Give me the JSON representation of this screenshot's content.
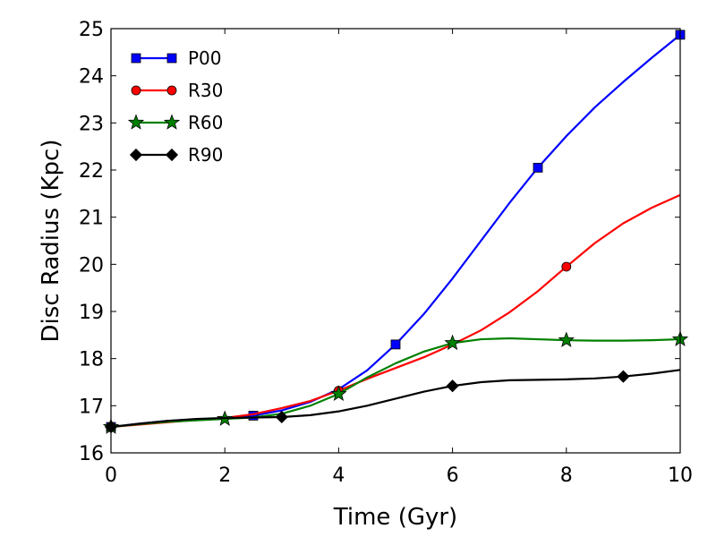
{
  "chart_data": {
    "type": "line",
    "title": "",
    "xlabel": "Time (Gyr)",
    "ylabel": "Disc Radius (Kpc)",
    "xlim": [
      0,
      10
    ],
    "ylim": [
      16,
      25
    ],
    "xticks": [
      0,
      2,
      4,
      6,
      8,
      10
    ],
    "yticks": [
      16,
      17,
      18,
      19,
      20,
      21,
      22,
      23,
      24,
      25
    ],
    "xtick_labels": [
      "0",
      "2",
      "4",
      "6",
      "8",
      "10"
    ],
    "ytick_labels": [
      "16",
      "17",
      "18",
      "19",
      "20",
      "21",
      "22",
      "23",
      "24",
      "25"
    ],
    "grid": false,
    "legend_position": "top-left",
    "series": [
      {
        "name": "P00",
        "color": "#0000ff",
        "marker": "square",
        "x": [
          0,
          0.5,
          1,
          1.5,
          2,
          2.5,
          3,
          3.5,
          4,
          4.5,
          5,
          5.5,
          6,
          6.5,
          7,
          7.5,
          8,
          8.5,
          9,
          9.5,
          10
        ],
        "y": [
          16.55,
          16.62,
          16.68,
          16.71,
          16.73,
          16.79,
          16.9,
          17.08,
          17.35,
          17.75,
          18.3,
          18.95,
          19.7,
          20.5,
          21.3,
          22.05,
          22.72,
          23.33,
          23.87,
          24.38,
          24.87
        ],
        "marker_x": [
          0,
          2.5,
          5,
          7.5,
          10
        ],
        "marker_y": [
          16.55,
          16.79,
          18.3,
          22.05,
          24.87
        ]
      },
      {
        "name": "R30",
        "color": "#ff0000",
        "marker": "circle",
        "x": [
          0,
          0.5,
          1,
          1.5,
          2,
          2.5,
          3,
          3.5,
          4,
          4.5,
          5,
          5.5,
          6,
          6.5,
          7,
          7.5,
          8,
          8.5,
          9,
          9.5,
          10
        ],
        "y": [
          16.55,
          16.6,
          16.65,
          16.7,
          16.74,
          16.82,
          16.95,
          17.1,
          17.32,
          17.57,
          17.8,
          18.03,
          18.3,
          18.6,
          18.98,
          19.43,
          19.95,
          20.45,
          20.87,
          21.2,
          21.47
        ],
        "marker_x": [
          0,
          4,
          8
        ],
        "marker_y": [
          16.55,
          17.32,
          19.95
        ]
      },
      {
        "name": "R60",
        "color": "#008000",
        "marker": "star",
        "x": [
          0,
          0.5,
          1,
          1.5,
          2,
          2.5,
          3,
          3.5,
          4,
          4.5,
          5,
          5.5,
          6,
          6.5,
          7,
          7.5,
          8,
          8.5,
          9,
          9.5,
          10
        ],
        "y": [
          16.55,
          16.61,
          16.66,
          16.69,
          16.72,
          16.75,
          16.83,
          17.0,
          17.25,
          17.6,
          17.9,
          18.15,
          18.33,
          18.41,
          18.43,
          18.41,
          18.39,
          18.38,
          18.38,
          18.39,
          18.41
        ],
        "marker_x": [
          0,
          2,
          4,
          6,
          8,
          10
        ],
        "marker_y": [
          16.55,
          16.72,
          17.25,
          18.33,
          18.39,
          18.41
        ]
      },
      {
        "name": "R90",
        "color": "#000000",
        "marker": "diamond",
        "x": [
          0,
          0.5,
          1,
          1.5,
          2,
          2.5,
          3,
          3.5,
          4,
          4.5,
          5,
          5.5,
          6,
          6.5,
          7,
          7.5,
          8,
          8.5,
          9,
          9.5,
          10
        ],
        "y": [
          16.55,
          16.62,
          16.68,
          16.72,
          16.74,
          16.75,
          16.76,
          16.8,
          16.88,
          17.0,
          17.15,
          17.3,
          17.42,
          17.5,
          17.54,
          17.55,
          17.56,
          17.58,
          17.62,
          17.68,
          17.76
        ],
        "marker_x": [
          0,
          3,
          6,
          9
        ],
        "marker_y": [
          16.55,
          16.76,
          17.42,
          17.62
        ]
      }
    ]
  }
}
